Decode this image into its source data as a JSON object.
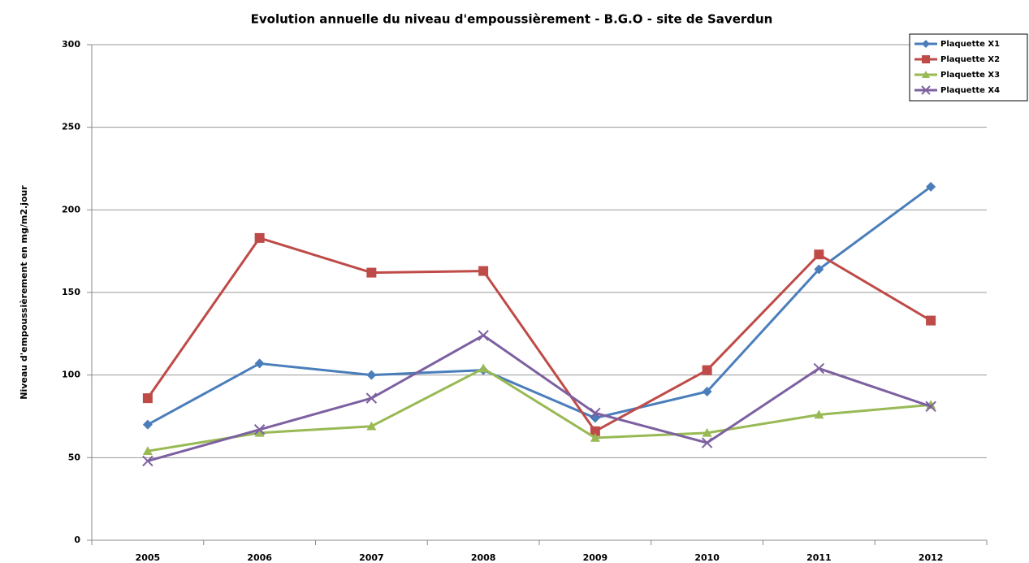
{
  "chart_data": {
    "type": "line",
    "title": "Evolution annuelle du niveau d'empoussièrement - B.G.O - site de Saverdun",
    "y_label": "Niveau d'empoussièrement en mg/m2.jour",
    "categories": [
      "2005",
      "2006",
      "2007",
      "2008",
      "2009",
      "2010",
      "2011",
      "2012"
    ],
    "series": [
      {
        "name": "Plaquette X1",
        "color": "#4a7ebb",
        "marker": "diamond",
        "values": [
          70,
          107,
          100,
          103,
          74,
          90,
          164,
          214
        ]
      },
      {
        "name": "Plaquette X2",
        "color": "#be4b48",
        "marker": "square",
        "values": [
          86,
          183,
          162,
          163,
          66,
          103,
          173,
          133
        ]
      },
      {
        "name": "Plaquette X3",
        "color": "#98b954",
        "marker": "triangle",
        "values": [
          54,
          65,
          69,
          104,
          62,
          65,
          76,
          82
        ]
      },
      {
        "name": "Plaquette X4",
        "color": "#7d60a0",
        "marker": "x",
        "values": [
          48,
          67,
          86,
          124,
          77,
          59,
          104,
          81
        ]
      }
    ],
    "ylim": [
      0,
      300
    ],
    "yticks": [
      0,
      50,
      100,
      150,
      200,
      250,
      300
    ],
    "grid": true,
    "legend": "top-right"
  }
}
